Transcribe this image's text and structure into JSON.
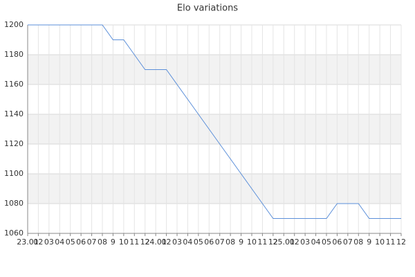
{
  "chart_data": {
    "type": "line",
    "title": "Elo variations",
    "categories": [
      "23.01",
      "02",
      "03",
      "04",
      "05",
      "06",
      "07",
      "08",
      "9",
      "10",
      "11",
      "12",
      "24.01",
      "02",
      "03",
      "04",
      "05",
      "06",
      "07",
      "08",
      "9",
      "10",
      "11",
      "12",
      "25.01",
      "02",
      "03",
      "04",
      "05",
      "06",
      "07",
      "08",
      "9",
      "10",
      "11",
      "12"
    ],
    "values": [
      1200,
      1200,
      1200,
      1200,
      1200,
      1200,
      1200,
      1200,
      1190,
      1190,
      1180,
      1170,
      1170,
      1170,
      1160,
      1150,
      1140,
      1130,
      1120,
      1110,
      1100,
      1090,
      1080,
      1070,
      1070,
      1070,
      1070,
      1070,
      1070,
      1080,
      1080,
      1080,
      1070,
      1070,
      1070,
      1070
    ],
    "color": "#5b8fd9",
    "ylim": [
      1060,
      1200
    ],
    "yticks": [
      1060,
      1080,
      1100,
      1120,
      1140,
      1160,
      1180,
      1200
    ],
    "grid": true,
    "band_color": "#f2f2f2"
  }
}
